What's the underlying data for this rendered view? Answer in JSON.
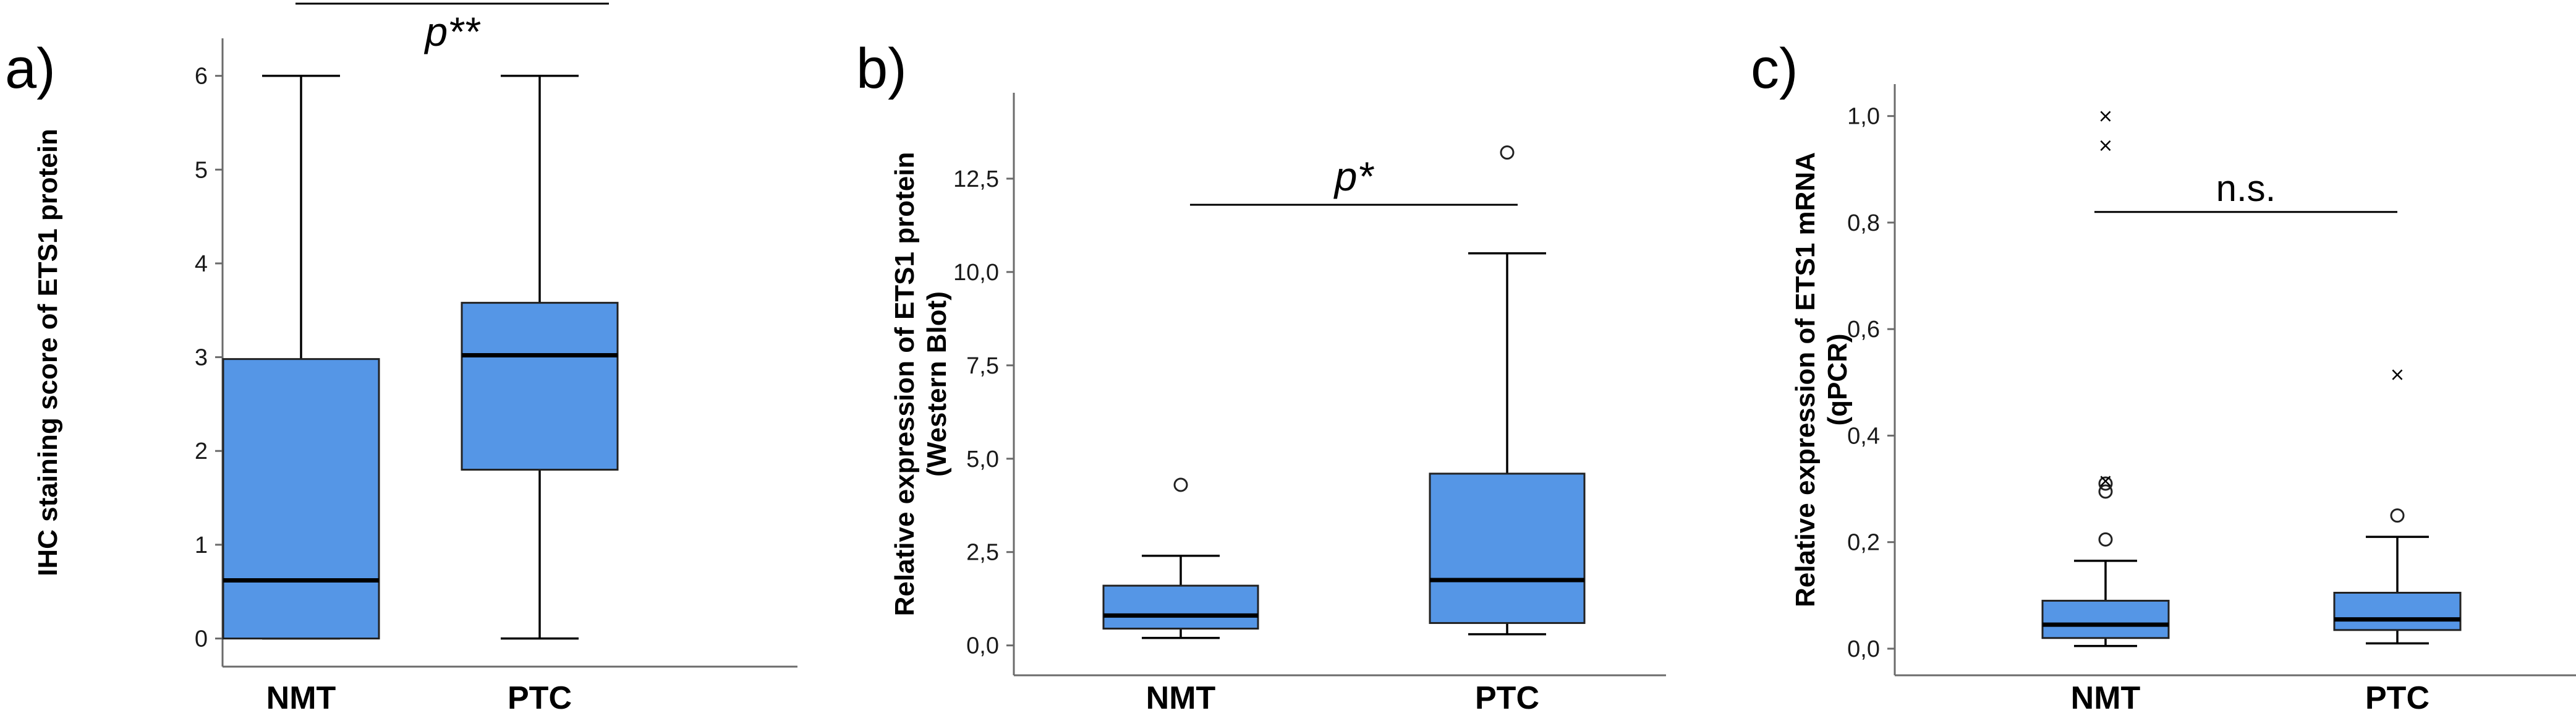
{
  "colors": {
    "box_fill": "#5596e6",
    "axis": "#6b6b6b"
  },
  "chart_data": [
    {
      "type": "boxplot",
      "panel": "a)",
      "ylabel": "IHC staining score of ETS1 protein",
      "ylim": [
        -0.3,
        6.4
      ],
      "yticks": [
        0,
        1,
        2,
        3,
        4,
        5,
        6
      ],
      "ytick_labels": [
        "0",
        "1",
        "2",
        "3",
        "4",
        "5",
        "6"
      ],
      "categories": [
        "NMT",
        "PTC"
      ],
      "boxes": [
        {
          "name": "NMT",
          "min": 0,
          "q1": 0,
          "median": 0.62,
          "q3": 2.98,
          "max": 6,
          "outliers": [],
          "extremes": []
        },
        {
          "name": "PTC",
          "min": 0,
          "q1": 1.8,
          "median": 3.02,
          "q3": 3.58,
          "max": 6,
          "outliers": [],
          "extremes": []
        }
      ],
      "significance": {
        "label": "p**",
        "y": 6.77
      }
    },
    {
      "type": "boxplot",
      "panel": "b)",
      "ylabel": "Relative expression of ETS1 protein",
      "ylabel2": "(Western Blot)",
      "ylim": [
        -0.8,
        14.8
      ],
      "yticks": [
        0,
        2.5,
        5,
        7.5,
        10,
        12.5
      ],
      "ytick_labels": [
        "0,0",
        "2,5",
        "5,0",
        "7,5",
        "10,0",
        "12,5"
      ],
      "categories": [
        "NMT",
        "PTC"
      ],
      "boxes": [
        {
          "name": "NMT",
          "min": 0.2,
          "q1": 0.45,
          "median": 0.8,
          "q3": 1.6,
          "max": 2.4,
          "outliers": [
            4.3
          ],
          "extremes": []
        },
        {
          "name": "PTC",
          "min": 0.3,
          "q1": 0.6,
          "median": 1.75,
          "q3": 4.6,
          "max": 10.5,
          "outliers": [
            13.2
          ],
          "extremes": []
        }
      ],
      "significance": {
        "label": "p*",
        "y": 11.8
      }
    },
    {
      "type": "boxplot",
      "panel": "c)",
      "ylabel": "Relative expression of ETS1 mRNA",
      "ylabel2": "(qPCR)",
      "ylim": [
        -0.05,
        1.06
      ],
      "yticks": [
        0,
        0.2,
        0.4,
        0.6,
        0.8,
        1.0
      ],
      "ytick_labels": [
        "0,0",
        "0,2",
        "0,4",
        "0,6",
        "0,8",
        "1,0"
      ],
      "categories": [
        "NMT",
        "PTC"
      ],
      "boxes": [
        {
          "name": "NMT",
          "min": 0.005,
          "q1": 0.02,
          "median": 0.045,
          "q3": 0.09,
          "max": 0.165,
          "outliers": [
            0.205,
            0.295,
            0.31
          ],
          "extremes": [
            0.315,
            0.945,
            1.0
          ]
        },
        {
          "name": "PTC",
          "min": 0.01,
          "q1": 0.035,
          "median": 0.055,
          "q3": 0.105,
          "max": 0.21,
          "outliers": [
            0.25
          ],
          "extremes": [
            0.515
          ]
        }
      ],
      "significance": {
        "label": "n.s.",
        "y": 0.82
      }
    }
  ]
}
